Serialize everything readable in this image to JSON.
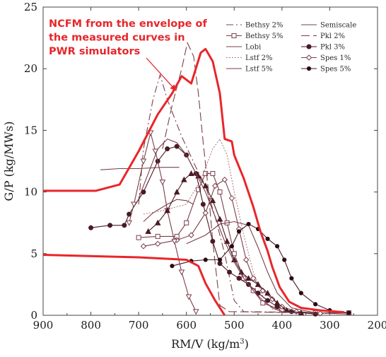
{
  "chart_data": {
    "type": "line",
    "title": "",
    "xlabel": "RM/V (kg/m",
    "xlabel_sup": "3",
    "xlabel_end": ")",
    "ylabel": "G/P (kg/MWs)",
    "xlim": [
      900,
      200
    ],
    "ylim": [
      0,
      25
    ],
    "x_ticks": [
      "900",
      "800",
      "700",
      "600",
      "500",
      "400",
      "300",
      "200"
    ],
    "y_ticks": [
      "0",
      "5",
      "10",
      "15",
      "20",
      "25"
    ],
    "grid": false,
    "legend_position": "top-right",
    "annotation": {
      "lines": [
        "NCFM from the envelope of",
        "the measured curves in",
        "PWR simulators"
      ],
      "color": "#e8262a",
      "arrow_to": [
        622,
        18
      ]
    },
    "envelope": {
      "color": "#e8262a",
      "upper": [
        [
          900,
          10.1
        ],
        [
          790,
          10.1
        ],
        [
          740,
          10.6
        ],
        [
          700,
          13.3
        ],
        [
          660,
          16.3
        ],
        [
          630,
          18.0
        ],
        [
          610,
          19.4
        ],
        [
          590,
          18.8
        ],
        [
          570,
          21.3
        ],
        [
          560,
          21.6
        ],
        [
          545,
          20.6
        ],
        [
          530,
          18.0
        ],
        [
          520,
          14.3
        ],
        [
          505,
          14.1
        ],
        [
          500,
          13.0
        ],
        [
          480,
          11.1
        ],
        [
          460,
          8.8
        ],
        [
          445,
          6.8
        ],
        [
          430,
          5.2
        ],
        [
          420,
          3.9
        ],
        [
          405,
          2.3
        ],
        [
          385,
          1.1
        ],
        [
          360,
          0.6
        ],
        [
          320,
          0.4
        ],
        [
          270,
          0.25
        ]
      ],
      "lower": [
        [
          900,
          4.9
        ],
        [
          700,
          4.7
        ],
        [
          600,
          4.5
        ],
        [
          575,
          4.0
        ],
        [
          560,
          2.6
        ],
        [
          540,
          1.2
        ],
        [
          520,
          0
        ]
      ]
    },
    "series": [
      {
        "name": "Bethsy 2%",
        "marker": "none",
        "dash": "10 4 2 4",
        "color": "#7a3f4a",
        "points": [
          [
            700,
            9.0
          ],
          [
            690,
            13.5
          ],
          [
            670,
            17.5
          ],
          [
            655,
            19.5
          ],
          [
            640,
            17.5
          ],
          [
            610,
            14.5
          ],
          [
            580,
            12.0
          ],
          [
            560,
            10.5
          ],
          [
            540,
            8.0
          ],
          [
            520,
            5.0
          ],
          [
            500,
            1.2
          ],
          [
            480,
            0.3
          ],
          [
            300,
            0.2
          ]
        ]
      },
      {
        "name": "Bethsy 5%",
        "marker": "square",
        "dash": "",
        "color": "#7a3f4a",
        "points": [
          [
            700,
            6.3
          ],
          [
            660,
            6.4
          ],
          [
            620,
            6.4
          ],
          [
            600,
            7.5
          ],
          [
            575,
            10.2
          ],
          [
            560,
            11.5
          ],
          [
            545,
            11.5
          ],
          [
            530,
            10.0
          ],
          [
            515,
            7.5
          ],
          [
            500,
            5.0
          ],
          [
            480,
            3.0
          ],
          [
            460,
            2.0
          ],
          [
            440,
            1.0
          ],
          [
            400,
            0.4
          ],
          [
            330,
            0.2
          ],
          [
            260,
            0.2
          ]
        ]
      },
      {
        "name": "Lobi",
        "marker": "none",
        "dash": "",
        "color": "#7a3f4a",
        "points": [
          [
            690,
            7.6
          ],
          [
            670,
            8.3
          ],
          [
            640,
            9.0
          ],
          [
            620,
            9.4
          ],
          [
            600,
            9.3
          ],
          [
            585,
            9.0
          ]
        ]
      },
      {
        "name": "Lstf 2%",
        "marker": "none",
        "dash": "2 2",
        "color": "#b07a85",
        "points": [
          [
            690,
            8.2
          ],
          [
            650,
            8.5
          ],
          [
            600,
            9.0
          ],
          [
            570,
            11.0
          ],
          [
            545,
            13.5
          ],
          [
            530,
            14.3
          ],
          [
            515,
            13.0
          ],
          [
            500,
            10.0
          ],
          [
            480,
            6.5
          ],
          [
            460,
            3.5
          ],
          [
            440,
            1.5
          ],
          [
            420,
            0.5
          ],
          [
            380,
            0.2
          ],
          [
            250,
            0.1
          ]
        ]
      },
      {
        "name": "Lstf 5%",
        "marker": "none",
        "dash": "",
        "color": "#7a3f4a",
        "points": [
          [
            600,
            5.8
          ],
          [
            560,
            6.5
          ],
          [
            530,
            7.4
          ],
          [
            500,
            7.6
          ],
          [
            470,
            7.3
          ],
          [
            450,
            5.5
          ],
          [
            430,
            3.5
          ],
          [
            410,
            1.8
          ],
          [
            380,
            0.6
          ],
          [
            330,
            0.2
          ],
          [
            260,
            0.1
          ]
        ]
      },
      {
        "name": "Semiscale",
        "marker": "none",
        "dash": "",
        "color": "#7a3f4a",
        "points": [
          [
            780,
            11.8
          ],
          [
            740,
            11.9
          ],
          [
            700,
            11.9
          ],
          [
            650,
            12.0
          ],
          [
            615,
            12.0
          ]
        ]
      },
      {
        "name": "Pkl 2%",
        "marker": "none",
        "dash": "12 5",
        "color": "#7a3f4a",
        "points": [
          [
            650,
            13.5
          ],
          [
            630,
            17.0
          ],
          [
            610,
            20.0
          ],
          [
            598,
            22.1
          ],
          [
            585,
            21.0
          ],
          [
            575,
            18.0
          ],
          [
            565,
            14.0
          ],
          [
            555,
            10.5
          ],
          [
            545,
            6.0
          ],
          [
            530,
            0.8
          ],
          [
            510,
            0.3
          ],
          [
            350,
            0.2
          ]
        ]
      },
      {
        "name": "Pkl 3%",
        "marker": "circle",
        "dash": "",
        "color": "#4a1a24",
        "points": [
          [
            800,
            7.1
          ],
          [
            760,
            7.3
          ],
          [
            730,
            7.3
          ],
          [
            720,
            8.2
          ],
          [
            690,
            10.0
          ],
          [
            660,
            12.5
          ],
          [
            640,
            13.5
          ],
          [
            620,
            13.7
          ],
          [
            600,
            13.0
          ],
          [
            580,
            11.5
          ],
          [
            565,
            9.0
          ],
          [
            545,
            6.0
          ],
          [
            530,
            4.2
          ],
          [
            510,
            3.5
          ],
          [
            490,
            3.0
          ],
          [
            470,
            2.5
          ],
          [
            450,
            1.8
          ],
          [
            430,
            1.2
          ],
          [
            410,
            0.7
          ],
          [
            380,
            0.3
          ],
          [
            330,
            0.1
          ]
        ]
      },
      {
        "name": "Spes 1%",
        "marker": "diamond",
        "dash": "",
        "color": "#7a3f4a",
        "points": [
          [
            690,
            5.6
          ],
          [
            660,
            5.8
          ],
          [
            620,
            6.1
          ],
          [
            590,
            6.5
          ],
          [
            560,
            8.3
          ],
          [
            540,
            10.5
          ],
          [
            520,
            11.0
          ],
          [
            505,
            9.5
          ],
          [
            490,
            7.0
          ],
          [
            475,
            4.5
          ],
          [
            460,
            3.0
          ],
          [
            440,
            2.0
          ],
          [
            420,
            1.3
          ],
          [
            400,
            0.7
          ],
          [
            370,
            0.3
          ],
          [
            320,
            0.15
          ]
        ]
      },
      {
        "name": "Spes 5%",
        "marker": "dot",
        "dash": "",
        "color": "#4a1a24",
        "points": [
          [
            630,
            4.0
          ],
          [
            590,
            4.4
          ],
          [
            560,
            4.5
          ],
          [
            530,
            4.5
          ],
          [
            505,
            5.6
          ],
          [
            490,
            6.8
          ],
          [
            470,
            7.4
          ],
          [
            450,
            7.0
          ],
          [
            430,
            6.2
          ],
          [
            410,
            5.6
          ],
          [
            395,
            4.5
          ],
          [
            380,
            3.0
          ],
          [
            360,
            1.8
          ],
          [
            330,
            0.9
          ],
          [
            300,
            0.4
          ],
          [
            260,
            0.2
          ]
        ]
      },
      {
        "name": "",
        "marker": "tri-down",
        "dash": "",
        "color": "#7a3f4a",
        "points": [
          [
            720,
            7.5
          ],
          [
            710,
            9.0
          ],
          [
            690,
            12.5
          ],
          [
            675,
            14.8
          ],
          [
            665,
            13.3
          ],
          [
            650,
            10.8
          ],
          [
            640,
            8.5
          ],
          [
            625,
            6.0
          ],
          [
            610,
            3.5
          ],
          [
            595,
            1.5
          ],
          [
            580,
            0.3
          ]
        ]
      },
      {
        "name": "",
        "marker": "tri-up",
        "dash": "",
        "color": "#4a1a24",
        "points": [
          [
            680,
            6.8
          ],
          [
            660,
            7.5
          ],
          [
            640,
            8.5
          ],
          [
            620,
            10.0
          ],
          [
            605,
            11.0
          ],
          [
            590,
            11.5
          ],
          [
            575,
            11.3
          ],
          [
            560,
            10.5
          ],
          [
            545,
            9.3
          ],
          [
            530,
            7.8
          ],
          [
            515,
            6.0
          ],
          [
            500,
            4.5
          ],
          [
            485,
            3.5
          ],
          [
            470,
            3.0
          ],
          [
            450,
            2.5
          ],
          [
            430,
            1.8
          ],
          [
            410,
            1.0
          ],
          [
            390,
            0.4
          ],
          [
            360,
            0.2
          ]
        ]
      },
      {
        "name": "",
        "marker": "none",
        "dash": "",
        "color": "#7a3f4a",
        "points": [
          [
            700,
            9.5
          ],
          [
            680,
            11.5
          ],
          [
            660,
            13.5
          ],
          [
            640,
            14.3
          ],
          [
            620,
            14.0
          ],
          [
            600,
            13.0
          ],
          [
            580,
            11.5
          ],
          [
            560,
            10.0
          ],
          [
            540,
            8.0
          ],
          [
            520,
            6.0
          ],
          [
            500,
            4.3
          ],
          [
            480,
            3.0
          ],
          [
            460,
            2.0
          ],
          [
            440,
            1.2
          ],
          [
            420,
            0.6
          ],
          [
            400,
            0.3
          ],
          [
            360,
            0.15
          ]
        ]
      }
    ]
  }
}
